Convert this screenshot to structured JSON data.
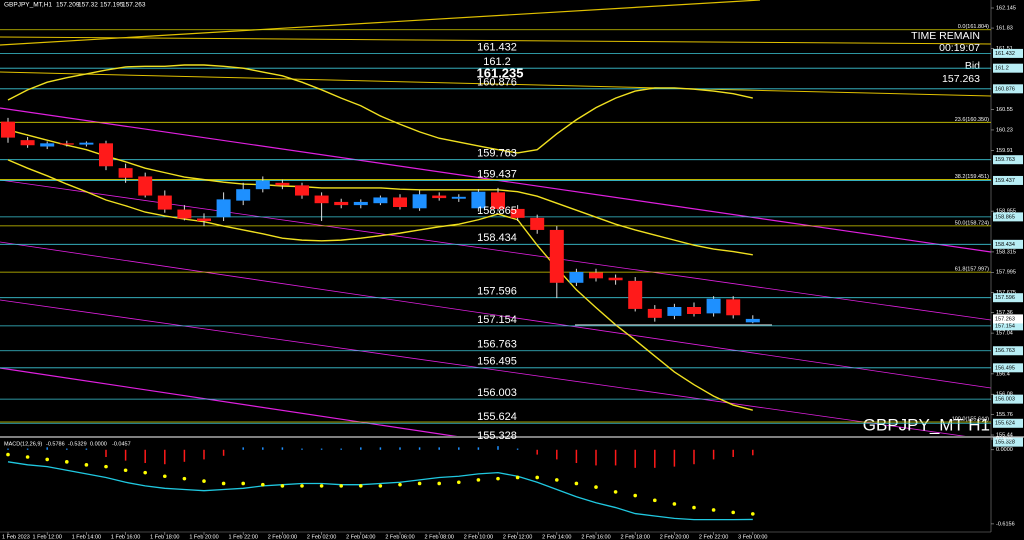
{
  "chart_data": [
    {
      "type": "candlestick",
      "title": "GBPJPY_MT,H1",
      "watermark": "GBPJPY_MT H1",
      "time_remain_label": "TIME REMAIN",
      "time_remain": "00:19:07",
      "bid_label": "Bid",
      "marker_price": 161.235,
      "x": [
        "1 Feb 2023",
        null,
        "1 Feb 12:00",
        null,
        "1 Feb 14:00",
        null,
        "1 Feb 16:00",
        null,
        "1 Feb 18:00",
        null,
        "1 Feb 20:00",
        null,
        "1 Feb 22:00",
        null,
        "2 Feb 00:00",
        null,
        "2 Feb 02:00",
        null,
        "2 Feb 04:00",
        null,
        "2 Feb 06:00",
        null,
        "2 Feb 08:00",
        null,
        "2 Feb 10:00",
        null,
        "2 Feb 12:00",
        null,
        "2 Feb 14:00",
        null,
        "2 Feb 16:00",
        null,
        "2 Feb 18:00",
        null,
        "2 Feb 20:00",
        null,
        "2 Feb 22:00",
        null,
        "3 Feb 00:00"
      ],
      "open": [
        160.36,
        160.07,
        159.97,
        160.02,
        160.0,
        160.02,
        159.63,
        159.5,
        159.2,
        158.98,
        158.84,
        158.86,
        159.12,
        159.3,
        159.4,
        159.36,
        159.2,
        159.1,
        159.05,
        159.08,
        159.17,
        159.0,
        159.2,
        159.15,
        159.0,
        159.25,
        158.99,
        158.85,
        158.66,
        157.83,
        157.99,
        157.91,
        157.86,
        157.42,
        157.31,
        157.45,
        157.35,
        157.57,
        157.209
      ],
      "high": [
        160.42,
        160.12,
        160.05,
        160.06,
        160.05,
        160.06,
        159.7,
        159.56,
        159.28,
        159.05,
        158.92,
        159.25,
        159.4,
        159.5,
        159.45,
        159.4,
        159.25,
        159.15,
        159.14,
        159.2,
        159.22,
        159.28,
        159.25,
        159.22,
        159.3,
        159.32,
        159.05,
        158.9,
        158.72,
        158.05,
        158.05,
        157.96,
        157.92,
        157.48,
        157.5,
        157.52,
        157.62,
        157.62,
        157.32
      ],
      "low": [
        160.03,
        159.95,
        159.93,
        159.97,
        159.97,
        159.6,
        159.4,
        159.17,
        158.93,
        158.81,
        158.72,
        158.8,
        159.05,
        159.25,
        159.3,
        159.15,
        158.8,
        159.0,
        159.0,
        159.05,
        158.98,
        158.96,
        159.12,
        159.1,
        158.95,
        158.95,
        158.8,
        158.6,
        157.59,
        157.78,
        157.85,
        157.8,
        157.38,
        157.22,
        157.26,
        157.3,
        157.3,
        157.27,
        157.195
      ],
      "close": [
        160.11,
        159.99,
        160.02,
        160.0,
        160.03,
        159.66,
        159.48,
        159.2,
        158.98,
        158.84,
        158.8,
        159.14,
        159.3,
        159.43,
        159.36,
        159.2,
        159.08,
        159.05,
        159.1,
        159.17,
        159.02,
        159.22,
        159.16,
        159.18,
        159.26,
        158.99,
        158.85,
        158.66,
        157.83,
        158.0,
        157.9,
        157.87,
        157.42,
        157.28,
        157.45,
        157.34,
        157.58,
        157.32,
        157.263
      ],
      "up_color": "#1e90ff",
      "down_color": "#ff1a1a",
      "series": [
        {
          "color": "#f0e020",
          "values": [
            160.7,
            160.86,
            160.98,
            161.05,
            161.11,
            161.17,
            161.22,
            161.23,
            161.23,
            161.25,
            161.25,
            161.23,
            161.2,
            161.14,
            161.08,
            160.98,
            160.86,
            160.73,
            160.61,
            160.45,
            160.32,
            160.2,
            160.1,
            160.04,
            159.98,
            159.92,
            159.87,
            159.92,
            160.17,
            160.39,
            160.58,
            160.73,
            160.84,
            160.89,
            160.89,
            160.87,
            160.84,
            160.8,
            160.73
          ]
        },
        {
          "color": "#f0e020",
          "values": [
            160.23,
            160.15,
            160.07,
            159.99,
            159.92,
            159.82,
            159.73,
            159.63,
            159.56,
            159.49,
            159.45,
            159.41,
            159.38,
            159.37,
            159.35,
            159.34,
            159.32,
            159.32,
            159.32,
            159.32,
            159.3,
            159.29,
            159.29,
            159.29,
            159.29,
            159.29,
            159.26,
            159.19,
            159.08,
            158.97,
            158.86,
            158.75,
            158.66,
            158.58,
            158.5,
            158.42,
            158.36,
            158.32,
            158.27
          ]
        },
        {
          "color": "#f0e020",
          "values": [
            159.76,
            159.63,
            159.51,
            159.38,
            159.26,
            159.13,
            159.04,
            158.94,
            158.88,
            158.83,
            158.79,
            158.72,
            158.66,
            158.6,
            158.53,
            158.5,
            158.49,
            158.5,
            158.53,
            158.57,
            158.61,
            158.66,
            158.71,
            158.75,
            158.82,
            158.91,
            158.82,
            158.42,
            158.06,
            157.72,
            157.44,
            157.17,
            156.93,
            156.68,
            156.43,
            156.23,
            156.05,
            155.91,
            155.83
          ]
        }
      ],
      "levels": [
        161.432,
        161.2,
        160.876,
        159.763,
        159.437,
        158.865,
        158.434,
        157.596,
        157.154,
        156.763,
        156.495,
        156.003,
        155.624,
        155.328
      ],
      "level_color": "#3cc8d8",
      "fib_levels": [
        {
          "value": 161.804,
          "label": "0.0(161.804)"
        },
        {
          "value": 160.35,
          "label": "23.6(160.350)"
        },
        {
          "value": 159.451,
          "label": "38.2(159.451)"
        },
        {
          "value": 158.724,
          "label": "50.0(158.724)"
        },
        {
          "value": 157.997,
          "label": "61.8(157.997)"
        },
        {
          "value": 155.644,
          "label": "100.0(155.644)"
        }
      ],
      "fib_color": "#d8d000",
      "ylim": [
        155.44,
        162.145
      ],
      "yticks": [
        162.145,
        161.83,
        161.51,
        160.55,
        160.23,
        159.91,
        158.955,
        158.315,
        157.995,
        157.675,
        157.36,
        157.04,
        156.4,
        156.08,
        155.76,
        155.44
      ]
    },
    {
      "type": "macd",
      "title": "MACD(12,26,9)",
      "header_values": [
        -0.5786,
        -0.5329,
        {
          "value": 0,
          "label": "0.0000"
        },
        -0.0457
      ],
      "histogram": {
        "up_color": "#1e90ff",
        "down_color": "#ff1a1a",
        "values": [
          0.01,
          0.01,
          0.02,
          0.01,
          0.01,
          -0.06,
          -0.09,
          -0.11,
          -0.12,
          -0.1,
          -0.08,
          -0.05,
          0.02,
          0.02,
          0.02,
          0.01,
          0.01,
          0.01,
          0.02,
          0.02,
          0.02,
          0.02,
          0.02,
          0.02,
          0.02,
          0.03,
          0.01,
          -0.04,
          -0.08,
          -0.11,
          -0.13,
          -0.13,
          -0.15,
          -0.15,
          -0.14,
          -0.12,
          -0.08,
          -0.06,
          -0.0457
        ]
      },
      "signal": {
        "color": "#ffff00",
        "values": [
          -0.04,
          -0.06,
          -0.08,
          -0.1,
          -0.125,
          -0.14,
          -0.17,
          -0.19,
          -0.22,
          -0.24,
          -0.26,
          -0.28,
          -0.28,
          -0.29,
          -0.3,
          -0.3,
          -0.3,
          -0.3,
          -0.3,
          -0.3,
          -0.29,
          -0.28,
          -0.28,
          -0.27,
          -0.25,
          -0.24,
          -0.23,
          -0.23,
          -0.25,
          -0.28,
          -0.31,
          -0.35,
          -0.38,
          -0.42,
          -0.45,
          -0.48,
          -0.5,
          -0.52,
          -0.5329
        ]
      },
      "line": {
        "color": "#20c8e0",
        "values": [
          -0.1,
          -0.125,
          -0.14,
          -0.17,
          -0.2,
          -0.23,
          -0.27,
          -0.3,
          -0.32,
          -0.33,
          -0.34,
          -0.33,
          -0.32,
          -0.3,
          -0.29,
          -0.28,
          -0.28,
          -0.29,
          -0.29,
          -0.28,
          -0.27,
          -0.25,
          -0.23,
          -0.22,
          -0.2,
          -0.19,
          -0.22,
          -0.27,
          -0.33,
          -0.39,
          -0.44,
          -0.48,
          -0.53,
          -0.55,
          -0.57,
          -0.58,
          -0.58,
          -0.58,
          -0.5786
        ]
      },
      "ylim": [
        -0.683,
        0.0895
      ],
      "yticks": [
        0.0895,
        {
          "value": 0,
          "label": "0.0000"
        },
        -0.6156
      ]
    }
  ]
}
